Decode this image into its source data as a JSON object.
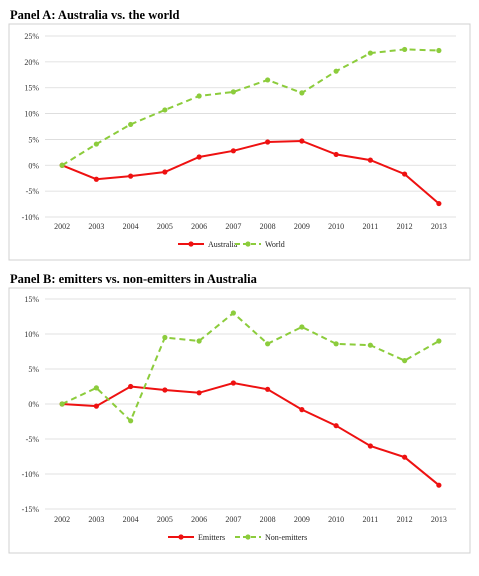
{
  "panels": [
    {
      "title": "Panel A: Australia vs. the world"
    },
    {
      "title": "Panel B: emitters vs. non-emitters in Australia"
    }
  ],
  "chart_data": [
    {
      "type": "line",
      "title": "Panel A: Australia vs. the world",
      "x": [
        "2002",
        "2003",
        "2004",
        "2005",
        "2006",
        "2007",
        "2008",
        "2009",
        "2010",
        "2011",
        "2012",
        "2013"
      ],
      "ylim": [
        -10,
        25
      ],
      "yticks": [
        25,
        20,
        15,
        10,
        5,
        0,
        -5,
        -10
      ],
      "yticklabels": [
        "25%",
        "20%",
        "15%",
        "10%",
        "5%",
        "0%",
        "-5%",
        "-10%"
      ],
      "grid": true,
      "legend": "bottom-center",
      "series": [
        {
          "name": "Australia",
          "color": "#ee1111",
          "dashed": false,
          "values": [
            0,
            -2.7,
            -2.1,
            -1.3,
            1.6,
            2.8,
            4.5,
            4.7,
            2.1,
            1.0,
            -1.7,
            -7.4
          ]
        },
        {
          "name": "World",
          "color": "#8ccc3c",
          "dashed": true,
          "values": [
            0,
            4.1,
            7.9,
            10.7,
            13.4,
            14.2,
            16.5,
            14.0,
            18.2,
            21.7,
            22.4,
            22.2
          ]
        }
      ]
    },
    {
      "type": "line",
      "title": "Panel B: emitters vs. non-emitters in Australia",
      "x": [
        "2002",
        "2003",
        "2004",
        "2005",
        "2006",
        "2007",
        "2008",
        "2009",
        "2010",
        "2011",
        "2012",
        "2013"
      ],
      "ylim": [
        -15,
        15
      ],
      "yticks": [
        15,
        10,
        5,
        0,
        -5,
        -10,
        -15
      ],
      "yticklabels": [
        "15%",
        "10%",
        "5%",
        "0%",
        "-5%",
        "-10%",
        "-15%"
      ],
      "grid": true,
      "legend": "bottom-center",
      "series": [
        {
          "name": "Emitters",
          "color": "#ee1111",
          "dashed": false,
          "values": [
            0,
            -0.3,
            2.5,
            2.0,
            1.6,
            3.0,
            2.1,
            -0.8,
            -3.1,
            -6.0,
            -7.6,
            -11.6
          ]
        },
        {
          "name": "Non-emitters",
          "color": "#8ccc3c",
          "dashed": true,
          "values": [
            0,
            2.3,
            -2.4,
            9.5,
            9.0,
            13.0,
            8.6,
            11.0,
            8.6,
            8.4,
            6.2,
            9.0
          ]
        }
      ]
    }
  ]
}
